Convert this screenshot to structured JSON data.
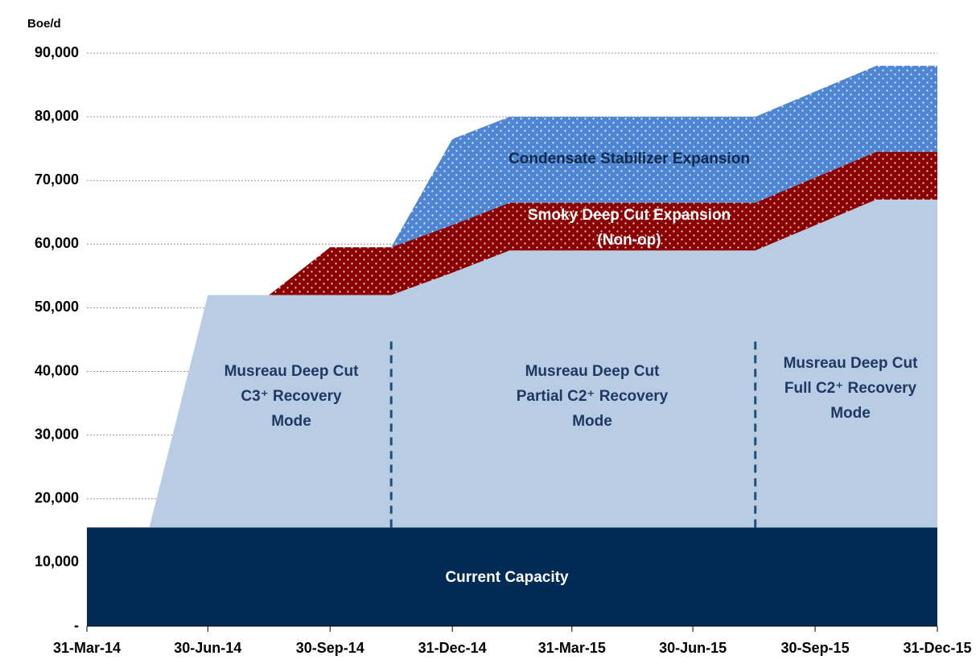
{
  "chart_data": {
    "type": "stacked_area",
    "y_label": "Boe/d",
    "x": [
      "2014-03-31",
      "2014-05-17",
      "2014-06-30",
      "2014-08-15",
      "2014-09-30",
      "2014-11-15",
      "2014-12-31",
      "2015-02-12",
      "2015-08-16",
      "2015-11-15",
      "2015-12-31"
    ],
    "series": [
      {
        "name": "Current Capacity",
        "color": "#002b55",
        "values": [
          15500,
          15500,
          15500,
          15500,
          15500,
          15500,
          15500,
          15500,
          15500,
          15500,
          15500
        ]
      },
      {
        "color": "#b8cce4",
        "values": [
          0,
          0,
          36500,
          36500,
          36500,
          36500,
          40000,
          43500,
          43500,
          51500,
          51500
        ]
      },
      {
        "name": "Smoky Deep Cut Expansion",
        "note": "(Non-op)",
        "color": "#8b0000",
        "pattern": "dots",
        "values": [
          0,
          0,
          0,
          0,
          7500,
          7500,
          7500,
          7500,
          7500,
          7500,
          7500
        ]
      },
      {
        "name": "Condensate Stabilizer Expansion",
        "color": "#4f86d4",
        "pattern": "dots",
        "values": [
          0,
          0,
          0,
          0,
          0,
          0,
          13500,
          13500,
          13500,
          13500,
          13500
        ]
      }
    ],
    "annotations": [
      {
        "lines": [
          "Musreau Deep Cut",
          "C3⁺ Recovery",
          "Mode"
        ]
      },
      {
        "lines": [
          "Musreau Deep Cut",
          "Partial C2⁺ Recovery",
          "Mode"
        ]
      },
      {
        "lines": [
          "Musreau Deep Cut",
          "Full C2⁺ Recovery",
          "Mode"
        ]
      }
    ],
    "dividers": [
      {
        "x": "2014-11-15",
        "y": [
          15500,
          45000
        ]
      },
      {
        "x": "2015-08-16",
        "y": [
          15500,
          45000
        ]
      }
    ],
    "xlim": [
      "2014-03-31",
      "2015-12-31"
    ],
    "xticks": [
      {
        "value": "2014-03-31",
        "label": "31-Mar-14"
      },
      {
        "value": "2014-06-30",
        "label": "30-Jun-14"
      },
      {
        "value": "2014-09-30",
        "label": "30-Sep-14"
      },
      {
        "value": "2014-12-31",
        "label": "31-Dec-14"
      },
      {
        "value": "2015-03-31",
        "label": "31-Mar-15"
      },
      {
        "value": "2015-06-30",
        "label": "30-Jun-15"
      },
      {
        "value": "2015-09-30",
        "label": "30-Sep-15"
      },
      {
        "value": "2015-12-31",
        "label": "31-Dec-15"
      }
    ],
    "ylim": [
      0,
      90000
    ],
    "yticks": [
      {
        "value": 0,
        "label": "-"
      },
      {
        "value": 10000,
        "label": "10,000"
      },
      {
        "value": 20000,
        "label": "20,000"
      },
      {
        "value": 30000,
        "label": "30,000"
      },
      {
        "value": 40000,
        "label": "40,000"
      },
      {
        "value": 50000,
        "label": "50,000"
      },
      {
        "value": 60000,
        "label": "60,000"
      },
      {
        "value": 70000,
        "label": "70,000"
      },
      {
        "value": 80000,
        "label": "80,000"
      },
      {
        "value": 90000,
        "label": "90,000"
      }
    ],
    "grid": true
  }
}
